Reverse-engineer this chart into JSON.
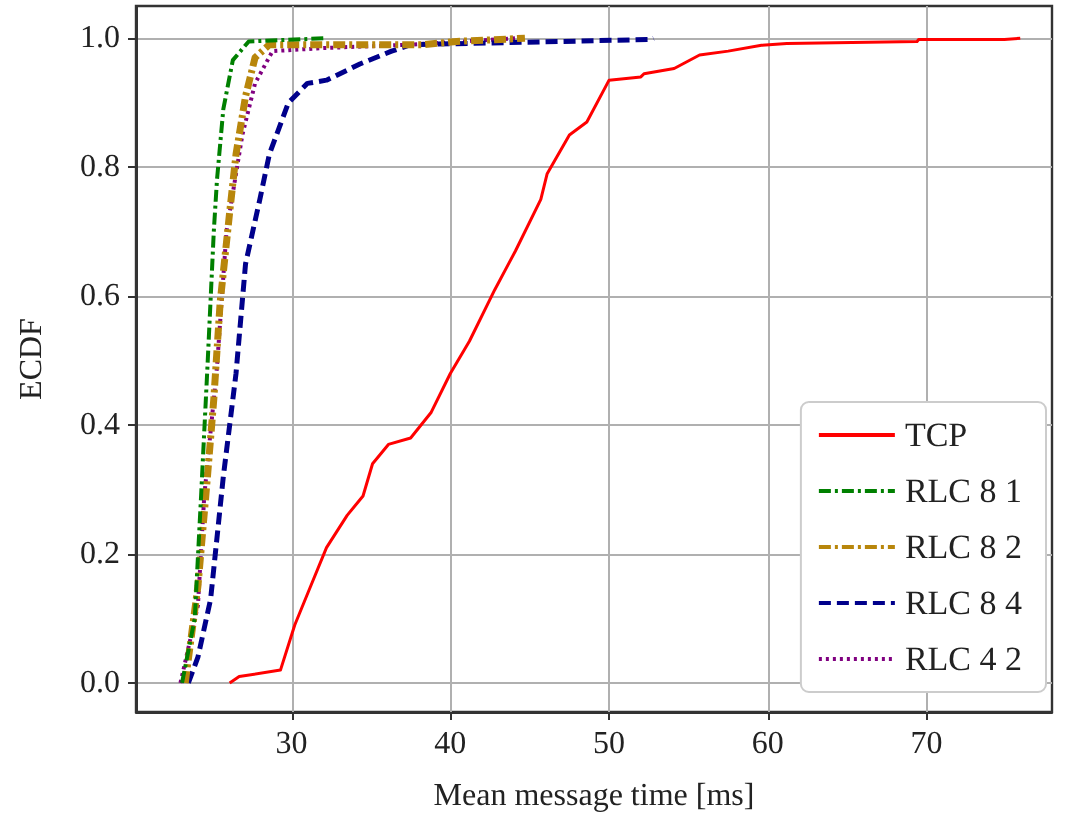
{
  "chart_data": {
    "type": "line",
    "xlabel": "Mean message time [ms]",
    "ylabel": "ECDF",
    "xlim": [
      20.2,
      77.9
    ],
    "xticks": [
      30,
      40,
      50,
      60,
      70
    ],
    "ylim": [
      -0.045,
      1.05
    ],
    "yticks": [
      {
        "value": 0,
        "label": "0.0"
      },
      0.2,
      0.4,
      0.6,
      0.8,
      {
        "value": 1,
        "label": "1.0"
      }
    ],
    "grid": true,
    "legend": "bottom right",
    "marker": "none",
    "series": [
      {
        "name": "TCP",
        "color": "#ff0000",
        "line_style": "solid",
        "x": [
          26.1,
          26.7,
          29.3,
          30.2,
          31.2,
          32.2,
          33.5,
          34.5,
          35.1,
          36.1,
          37.5,
          38.8,
          40.0,
          41.2,
          42.8,
          44.1,
          45.7,
          46.1,
          47.5,
          48.6,
          50.0,
          52.0,
          52.2,
          54.1,
          55.7,
          57.5,
          59.6,
          61.2,
          69.4,
          69.5,
          74.9,
          75.9
        ],
        "values": [
          0.0,
          0.01,
          0.02,
          0.09,
          0.15,
          0.21,
          0.26,
          0.29,
          0.34,
          0.37,
          0.38,
          0.42,
          0.48,
          0.53,
          0.61,
          0.67,
          0.75,
          0.79,
          0.85,
          0.87,
          0.935,
          0.94,
          0.945,
          0.953,
          0.974,
          0.98,
          0.989,
          0.992,
          0.995,
          0.998,
          0.998,
          1.0
        ]
      },
      {
        "name": "RLC 8 1",
        "color": "#008000",
        "line_style": "dashdot",
        "x": [
          23.1,
          23.9,
          24.3,
          24.7,
          25.1,
          25.3,
          25.7,
          26.3,
          27.3,
          32.2
        ],
        "values": [
          0.0,
          0.1,
          0.29,
          0.49,
          0.7,
          0.78,
          0.89,
          0.966,
          0.995,
          1.0
        ]
      },
      {
        "name": "RLC 8 2",
        "color": "#b8860b",
        "line_style": "dashdot",
        "x": [
          23.3,
          24.1,
          24.7,
          25.1,
          25.5,
          26.1,
          26.5,
          27.1,
          27.7,
          28.6,
          38.3,
          40.4,
          44.7
        ],
        "values": [
          0.0,
          0.15,
          0.32,
          0.44,
          0.59,
          0.73,
          0.82,
          0.91,
          0.97,
          0.99,
          0.99,
          0.995,
          1.0
        ]
      },
      {
        "name": "RLC 8 4",
        "color": "#00008b",
        "line_style": "dashed",
        "x": [
          23.5,
          24.1,
          24.9,
          25.7,
          26.5,
          27.1,
          28.0,
          28.6,
          29.8,
          31.0,
          32.2,
          34.3,
          36.3,
          37.5,
          52.6,
          52.8
        ],
        "values": [
          0.0,
          0.04,
          0.13,
          0.32,
          0.48,
          0.65,
          0.75,
          0.82,
          0.9,
          0.93,
          0.935,
          0.96,
          0.98,
          0.99,
          0.998,
          1.0
        ]
      },
      {
        "name": "RLC 4 2",
        "color": "#800080",
        "line_style": "dotted",
        "x": [
          23.0,
          24.1,
          24.5,
          25.3,
          25.9,
          26.9,
          27.7,
          28.8,
          32.2,
          37.5,
          44.1
        ],
        "values": [
          0.0,
          0.12,
          0.29,
          0.49,
          0.7,
          0.85,
          0.93,
          0.98,
          0.985,
          0.99,
          1.0
        ]
      }
    ]
  }
}
